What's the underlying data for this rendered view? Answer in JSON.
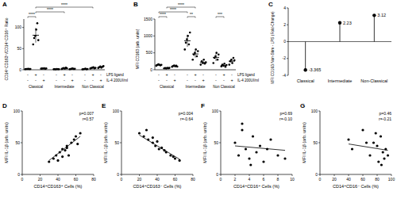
{
  "chart_data": [
    {
      "type": "dot",
      "label": "A",
      "ylabel": "CD14⁺CD163⁺/CD14⁺CD16⁺ Ratio",
      "ylim": [
        0,
        120
      ],
      "yticks": [
        0,
        50,
        100
      ],
      "color": "#000000",
      "groups": [
        "Classical",
        "Intermediate",
        "Non Classical"
      ],
      "rows": [
        {
          "label": "LPS ligand",
          "signs": [
            "-",
            "+",
            "-",
            "-",
            "+",
            "-",
            "-",
            "+",
            "-"
          ]
        },
        {
          "label": "IL-4 200UI/ml",
          "signs": [
            "-",
            "-",
            "+",
            "-",
            "-",
            "+",
            "-",
            "-",
            "+"
          ]
        }
      ],
      "columns": [
        {
          "values": [
            1.5,
            1.8,
            2.0,
            2.2,
            1.7,
            1.9
          ],
          "mean": 1.85,
          "sd": 0.25
        },
        {
          "values": [
            60,
            75,
            80,
            95,
            110,
            70
          ],
          "mean": 81.7,
          "sd": 17.5
        },
        {
          "values": [
            2.5,
            3.0,
            2.8,
            3.5,
            2.2,
            3.1
          ],
          "mean": 2.85,
          "sd": 0.45
        },
        {
          "values": [
            1.2,
            1.5,
            1.0,
            1.8,
            1.4,
            1.3
          ],
          "mean": 1.37,
          "sd": 0.27
        },
        {
          "values": [
            2,
            3,
            4,
            2.5,
            5,
            3.5
          ],
          "mean": 3.33,
          "sd": 1.08
        },
        {
          "values": [
            1.5,
            2,
            2.5,
            3,
            1.8,
            2.2
          ],
          "mean": 2.17,
          "sd": 0.53
        },
        {
          "values": [
            1,
            1.5,
            2,
            2.5,
            1.2,
            1.8
          ],
          "mean": 1.67,
          "sd": 0.55
        },
        {
          "values": [
            3,
            4,
            5,
            6,
            3.5,
            4.5
          ],
          "mean": 4.33,
          "sd": 1.08
        },
        {
          "values": [
            4,
            6,
            8,
            5,
            7,
            9
          ],
          "mean": 6.5,
          "sd": 1.87
        }
      ],
      "significance": [
        {
          "from": 0,
          "to": 1,
          "label": "****"
        },
        {
          "from": 1,
          "to": 4,
          "label": "****"
        },
        {
          "from": 1,
          "to": 7,
          "label": "****"
        }
      ]
    },
    {
      "type": "dot",
      "label": "B",
      "ylabel": "MFI CD163 (arb. units)",
      "ylim": [
        0,
        1500
      ],
      "yticks": [
        0,
        500,
        1000,
        1500
      ],
      "color": "#000000",
      "groups": [
        "Classical",
        "Intermediate",
        "Non Classical"
      ],
      "rows": [
        {
          "label": "LPS ligand",
          "signs": [
            "-",
            "+",
            "-",
            "-",
            "+",
            "-",
            "-",
            "+",
            "-"
          ]
        },
        {
          "label": "IL-4 200UI/ml",
          "signs": [
            "-",
            "-",
            "+",
            "-",
            "-",
            "+",
            "-",
            "-",
            "+"
          ]
        }
      ],
      "columns": [
        {
          "values": [
            120,
            140,
            160,
            150,
            130,
            145
          ],
          "mean": 141,
          "sd": 14
        },
        {
          "values": [
            40,
            50,
            35,
            60,
            45,
            55
          ],
          "mean": 47.5,
          "sd": 9
        },
        {
          "values": [
            90,
            110,
            130,
            100,
            120,
            95
          ],
          "mean": 107.5,
          "sd": 15
        },
        {
          "values": [
            600,
            800,
            900,
            1000,
            750,
            1100
          ],
          "mean": 858,
          "sd": 180
        },
        {
          "values": [
            300,
            450,
            500,
            600,
            400,
            550
          ],
          "mean": 467,
          "sd": 107
        },
        {
          "values": [
            150,
            250,
            200,
            300,
            180,
            220
          ],
          "mean": 217,
          "sd": 53
        },
        {
          "values": [
            200,
            350,
            400,
            500,
            300,
            450
          ],
          "mean": 367,
          "sd": 108
        },
        {
          "values": [
            100,
            150,
            120,
            180,
            90,
            140
          ],
          "mean": 130,
          "sd": 33
        },
        {
          "values": [
            150,
            250,
            300,
            200,
            350,
            280
          ],
          "mean": 255,
          "sd": 72
        }
      ],
      "significance": [
        {
          "from": 0,
          "to": 1,
          "label": "****"
        },
        {
          "from": 0,
          "to": 3,
          "label": "****"
        },
        {
          "from": 1,
          "to": 4,
          "label": "****"
        },
        {
          "from": 3,
          "to": 4,
          "label": "**"
        },
        {
          "from": 6,
          "to": 7,
          "label": "***"
        }
      ]
    },
    {
      "type": "lollipop",
      "label": "C",
      "ylabel": "MFI CD163 Non-Stim - LPS (Fold-Change)",
      "categories": [
        "Classical",
        "Intermediate",
        "Non-Classical"
      ],
      "values": [
        -3.365,
        2.23,
        3.12
      ],
      "ylim": [
        -4,
        4
      ],
      "yticks": [
        -4,
        -2,
        0,
        2,
        4
      ],
      "data_labels": true,
      "color": "#000000"
    },
    {
      "type": "scatter",
      "label": "D",
      "xlabel": "CD14⁺CD163⁺ Cells (%)",
      "ylabel": "MFI IL-1β (arb. units)",
      "xlim": [
        0,
        80
      ],
      "xticks": [
        0,
        20,
        40,
        60,
        80
      ],
      "ylim": [
        0,
        100
      ],
      "yticks": [
        0,
        50,
        100
      ],
      "color": "#000000",
      "x": [
        30,
        35,
        38,
        40,
        42,
        45,
        48,
        50,
        52,
        55,
        58,
        60,
        62,
        65,
        45,
        50
      ],
      "y": [
        20,
        25,
        30,
        22,
        35,
        40,
        38,
        45,
        30,
        50,
        55,
        60,
        48,
        65,
        28,
        42
      ],
      "trend": {
        "x": [
          30,
          65
        ],
        "y": [
          22,
          60
        ]
      },
      "annotations": [
        "p=0.007",
        "r=0.57"
      ]
    },
    {
      "type": "scatter",
      "label": "E",
      "xlabel": "CD14⁺CD163⁻ Cells (%)",
      "ylabel": "MFI IL-1β (arb. units)",
      "xlim": [
        0,
        80
      ],
      "xticks": [
        0,
        20,
        40,
        60,
        80
      ],
      "ylim": [
        0,
        100
      ],
      "yticks": [
        0,
        50,
        100
      ],
      "color": "#000000",
      "x": [
        20,
        25,
        28,
        30,
        35,
        38,
        40,
        42,
        45,
        50,
        55,
        58,
        60,
        65,
        35,
        48
      ],
      "y": [
        65,
        60,
        70,
        55,
        50,
        45,
        52,
        40,
        42,
        35,
        30,
        28,
        25,
        22,
        58,
        38
      ],
      "trend": {
        "x": [
          20,
          65
        ],
        "y": [
          62,
          24
        ]
      },
      "annotations": [
        "p=0.004",
        "r=-0.64"
      ]
    },
    {
      "type": "scatter",
      "label": "F",
      "xlabel": "CD14⁺CD16⁺ Cells (%)",
      "ylabel": "MFI IL-1β (arb. units)",
      "xlim": [
        0,
        10
      ],
      "xticks": [
        0,
        2,
        4,
        6,
        8,
        10
      ],
      "ylim": [
        0,
        100
      ],
      "yticks": [
        0,
        50,
        100
      ],
      "color": "#000000",
      "x": [
        2,
        2.5,
        3,
        3.5,
        4,
        4.5,
        5,
        5.5,
        6,
        7,
        8,
        9,
        3,
        4.2,
        6.5
      ],
      "y": [
        50,
        30,
        70,
        40,
        25,
        60,
        35,
        45,
        20,
        55,
        30,
        25,
        80,
        15,
        40
      ],
      "trend": {
        "x": [
          2,
          9
        ],
        "y": [
          45,
          38
        ]
      },
      "annotations": [
        "p=0.69",
        "r=-0.10"
      ]
    },
    {
      "type": "scatter",
      "label": "G",
      "xlabel": "CD14⁺CD16⁻ Cells (%)",
      "ylabel": "MFI IL-1β (arb. units)",
      "xlim": [
        0,
        100
      ],
      "xticks": [
        0,
        20,
        40,
        60,
        80,
        100
      ],
      "ylim": [
        0,
        100
      ],
      "yticks": [
        0,
        50,
        100
      ],
      "color": "#000000",
      "x": [
        40,
        45,
        60,
        70,
        75,
        80,
        82,
        85,
        88,
        90,
        92,
        95,
        78,
        86,
        65
      ],
      "y": [
        55,
        40,
        70,
        30,
        50,
        45,
        20,
        60,
        35,
        25,
        40,
        30,
        65,
        15,
        50
      ],
      "trend": {
        "x": [
          40,
          95
        ],
        "y": [
          48,
          38
        ]
      },
      "annotations": [
        "p=0.46",
        "r=-0.21"
      ]
    }
  ]
}
